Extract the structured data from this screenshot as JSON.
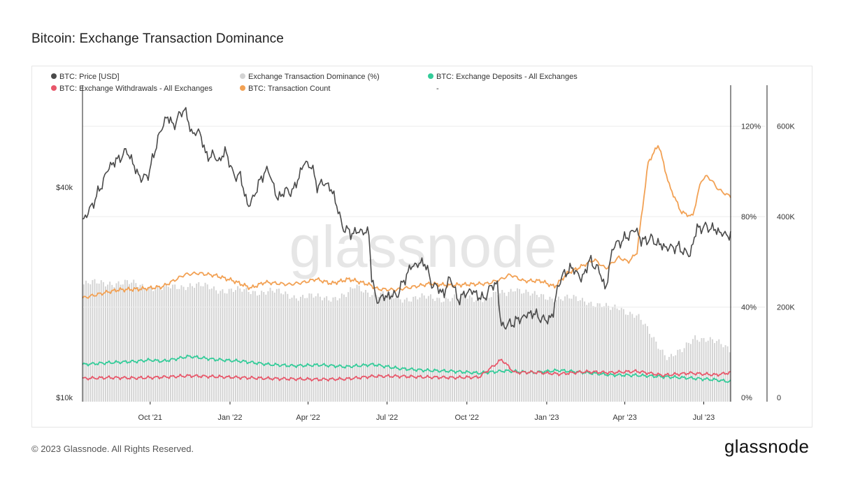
{
  "title": "Bitcoin: Exchange Transaction Dominance",
  "footer": {
    "copyright": "© 2023 Glassnode. All Rights Reserved.",
    "logo": "glassnode"
  },
  "watermark": "glassnode",
  "colors": {
    "price": "#4a4a4a",
    "dominance": "#d3d3d3",
    "deposits": "#33cc99",
    "withdrawals": "#e8576a",
    "txcount": "#f2a154"
  },
  "chart_data": {
    "type": "line",
    "title": "Bitcoin: Exchange Transaction Dominance",
    "x_range": [
      "2021-07-15",
      "2023-08-01"
    ],
    "x_ticks": [
      {
        "date": "2021-10-01",
        "label": "Oct '21"
      },
      {
        "date": "2022-01-01",
        "label": "Jan '22"
      },
      {
        "date": "2022-04-01",
        "label": "Apr '22"
      },
      {
        "date": "2022-07-01",
        "label": "Jul '22"
      },
      {
        "date": "2022-10-01",
        "label": "Oct '22"
      },
      {
        "date": "2023-01-01",
        "label": "Jan '23"
      },
      {
        "date": "2023-04-01",
        "label": "Apr '23"
      },
      {
        "date": "2023-07-01",
        "label": "Jul '23"
      }
    ],
    "left_axis": {
      "scale": "log",
      "ticks": [
        {
          "value": 10000,
          "label": "$10k"
        },
        {
          "value": 40000,
          "label": "$40k"
        }
      ]
    },
    "pct_axis": {
      "range": [
        0,
        140
      ],
      "ticks": [
        {
          "value": 0,
          "label": "0%"
        },
        {
          "value": 40,
          "label": "40%"
        },
        {
          "value": 80,
          "label": "80%"
        },
        {
          "value": 120,
          "label": "120%"
        }
      ]
    },
    "count_axis": {
      "range": [
        0,
        700000
      ],
      "ticks": [
        {
          "value": 0,
          "label": "0"
        },
        {
          "value": 200000,
          "label": "200K"
        },
        {
          "value": 400000,
          "label": "400K"
        },
        {
          "value": 600000,
          "label": "600K"
        }
      ]
    },
    "legend": [
      {
        "name": "BTC: Price [USD]",
        "color": "#4a4a4a"
      },
      {
        "name": "Exchange Transaction Dominance (%)",
        "color": "#d3d3d3"
      },
      {
        "name": "BTC: Exchange Deposits - All Exchanges",
        "color": "#33cc99"
      },
      {
        "name": "BTC: Exchange Withdrawals - All Exchanges",
        "color": "#e8576a"
      },
      {
        "name": "BTC: Transaction Count",
        "color": "#f2a154"
      },
      {
        "name": "-",
        "color": ""
      }
    ],
    "series": [
      {
        "name": "BTC: Price [USD]",
        "axis": "left",
        "color": "#4a4a4a",
        "points": [
          [
            "2021-07-15",
            32000
          ],
          [
            "2021-07-25",
            35000
          ],
          [
            "2021-08-05",
            40000
          ],
          [
            "2021-08-15",
            46000
          ],
          [
            "2021-08-25",
            48000
          ],
          [
            "2021-09-05",
            51000
          ],
          [
            "2021-09-12",
            46000
          ],
          [
            "2021-09-21",
            42000
          ],
          [
            "2021-09-30",
            44000
          ],
          [
            "2021-10-10",
            55000
          ],
          [
            "2021-10-20",
            64000
          ],
          [
            "2021-10-28",
            60000
          ],
          [
            "2021-11-09",
            67500
          ],
          [
            "2021-11-18",
            57000
          ],
          [
            "2021-11-28",
            57500
          ],
          [
            "2021-12-04",
            49000
          ],
          [
            "2021-12-12",
            49500
          ],
          [
            "2021-12-20",
            47500
          ],
          [
            "2021-12-27",
            51000
          ],
          [
            "2022-01-05",
            43000
          ],
          [
            "2022-01-12",
            43500
          ],
          [
            "2022-01-22",
            35000
          ],
          [
            "2022-01-28",
            37500
          ],
          [
            "2022-02-10",
            44500
          ],
          [
            "2022-02-16",
            44000
          ],
          [
            "2022-02-24",
            37000
          ],
          [
            "2022-03-05",
            39000
          ],
          [
            "2022-03-15",
            39000
          ],
          [
            "2022-03-28",
            47200
          ],
          [
            "2022-04-05",
            45800
          ],
          [
            "2022-04-12",
            40000
          ],
          [
            "2022-04-20",
            41500
          ],
          [
            "2022-04-30",
            38500
          ],
          [
            "2022-05-10",
            31000
          ],
          [
            "2022-05-20",
            29500
          ],
          [
            "2022-06-01",
            30000
          ],
          [
            "2022-06-10",
            29500
          ],
          [
            "2022-06-13",
            22500
          ],
          [
            "2022-06-18",
            19000
          ],
          [
            "2022-06-30",
            19500
          ],
          [
            "2022-07-13",
            19700
          ],
          [
            "2022-07-29",
            23800
          ],
          [
            "2022-08-14",
            24400
          ],
          [
            "2022-08-20",
            21400
          ],
          [
            "2022-09-05",
            19800
          ],
          [
            "2022-09-12",
            22300
          ],
          [
            "2022-09-20",
            19000
          ],
          [
            "2022-10-05",
            20300
          ],
          [
            "2022-10-20",
            19100
          ],
          [
            "2022-10-29",
            20800
          ],
          [
            "2022-11-05",
            21300
          ],
          [
            "2022-11-09",
            16000
          ],
          [
            "2022-11-20",
            16200
          ],
          [
            "2022-12-05",
            17000
          ],
          [
            "2022-12-15",
            17500
          ],
          [
            "2022-12-30",
            16600
          ],
          [
            "2023-01-08",
            17100
          ],
          [
            "2023-01-14",
            21000
          ],
          [
            "2023-01-22",
            22800
          ],
          [
            "2023-02-01",
            23500
          ],
          [
            "2023-02-10",
            21700
          ],
          [
            "2023-02-20",
            24800
          ],
          [
            "2023-03-05",
            22500
          ],
          [
            "2023-03-10",
            20000
          ],
          [
            "2023-03-18",
            27000
          ],
          [
            "2023-04-01",
            28500
          ],
          [
            "2023-04-14",
            30400
          ],
          [
            "2023-04-20",
            28000
          ],
          [
            "2023-05-01",
            28500
          ],
          [
            "2023-05-10",
            27500
          ],
          [
            "2023-05-20",
            26800
          ],
          [
            "2023-06-01",
            27000
          ],
          [
            "2023-06-15",
            25500
          ],
          [
            "2023-06-23",
            30500
          ],
          [
            "2023-07-05",
            30800
          ],
          [
            "2023-07-15",
            30200
          ],
          [
            "2023-07-25",
            29200
          ],
          [
            "2023-07-31",
            29300
          ]
        ]
      },
      {
        "name": "BTC: Transaction Count",
        "axis": "count",
        "color": "#f2a154",
        "points": [
          [
            "2021-07-15",
            220000
          ],
          [
            "2021-08-10",
            232000
          ],
          [
            "2021-08-25",
            238000
          ],
          [
            "2021-09-20",
            240000
          ],
          [
            "2021-10-15",
            245000
          ],
          [
            "2021-11-10",
            272000
          ],
          [
            "2021-11-25",
            275000
          ],
          [
            "2021-12-15",
            270000
          ],
          [
            "2022-01-05",
            258000
          ],
          [
            "2022-01-25",
            242000
          ],
          [
            "2022-02-10",
            255000
          ],
          [
            "2022-03-10",
            250000
          ],
          [
            "2022-03-28",
            255000
          ],
          [
            "2022-04-10",
            262000
          ],
          [
            "2022-04-28",
            252000
          ],
          [
            "2022-05-18",
            262000
          ],
          [
            "2022-06-10",
            250000
          ],
          [
            "2022-06-20",
            240000
          ],
          [
            "2022-07-10",
            238000
          ],
          [
            "2022-08-01",
            245000
          ],
          [
            "2022-08-20",
            252000
          ],
          [
            "2022-09-10",
            248000
          ],
          [
            "2022-10-01",
            250000
          ],
          [
            "2022-10-25",
            252000
          ],
          [
            "2022-11-10",
            262000
          ],
          [
            "2022-11-20",
            272000
          ],
          [
            "2022-12-05",
            258000
          ],
          [
            "2022-12-25",
            258000
          ],
          [
            "2023-01-10",
            245000
          ],
          [
            "2023-01-25",
            275000
          ],
          [
            "2023-02-10",
            290000
          ],
          [
            "2023-02-25",
            305000
          ],
          [
            "2023-03-10",
            285000
          ],
          [
            "2023-03-25",
            310000
          ],
          [
            "2023-04-05",
            300000
          ],
          [
            "2023-04-15",
            320000
          ],
          [
            "2023-04-28",
            520000
          ],
          [
            "2023-05-10",
            560000
          ],
          [
            "2023-05-22",
            470000
          ],
          [
            "2023-06-05",
            410000
          ],
          [
            "2023-06-18",
            400000
          ],
          [
            "2023-06-28",
            480000
          ],
          [
            "2023-07-05",
            490000
          ],
          [
            "2023-07-10",
            480000
          ],
          [
            "2023-07-18",
            460000
          ],
          [
            "2023-07-31",
            445000
          ]
        ]
      },
      {
        "name": "Exchange Transaction Dominance (%)",
        "axis": "pct",
        "color": "#d3d3d3",
        "points": [
          [
            "2021-07-15",
            50
          ],
          [
            "2021-08-15",
            51
          ],
          [
            "2021-09-15",
            50
          ],
          [
            "2021-10-15",
            48
          ],
          [
            "2021-11-15",
            50
          ],
          [
            "2021-12-15",
            48
          ],
          [
            "2022-01-15",
            47
          ],
          [
            "2022-02-15",
            47
          ],
          [
            "2022-03-15",
            45
          ],
          [
            "2022-04-15",
            44
          ],
          [
            "2022-05-15",
            45
          ],
          [
            "2022-05-25",
            49
          ],
          [
            "2022-06-15",
            46
          ],
          [
            "2022-07-15",
            44
          ],
          [
            "2022-08-15",
            44
          ],
          [
            "2022-09-15",
            44
          ],
          [
            "2022-10-15",
            44
          ],
          [
            "2022-11-15",
            46
          ],
          [
            "2022-11-25",
            49
          ],
          [
            "2022-12-15",
            45
          ],
          [
            "2023-01-15",
            44
          ],
          [
            "2023-02-15",
            43
          ],
          [
            "2023-03-15",
            39
          ],
          [
            "2023-03-25",
            40
          ],
          [
            "2023-04-15",
            36
          ],
          [
            "2023-05-01",
            27
          ],
          [
            "2023-05-20",
            18
          ],
          [
            "2023-06-05",
            20
          ],
          [
            "2023-06-20",
            27
          ],
          [
            "2023-07-05",
            26
          ],
          [
            "2023-07-31",
            21
          ]
        ]
      },
      {
        "name": "BTC: Exchange Deposits - All Exchanges",
        "axis": "count",
        "color": "#33cc99",
        "points": [
          [
            "2021-07-15",
            73000
          ],
          [
            "2021-08-15",
            77000
          ],
          [
            "2021-09-15",
            80000
          ],
          [
            "2021-10-01",
            83000
          ],
          [
            "2021-10-15",
            80000
          ],
          [
            "2021-11-15",
            91000
          ],
          [
            "2021-12-15",
            84000
          ],
          [
            "2022-01-15",
            80000
          ],
          [
            "2022-02-15",
            73000
          ],
          [
            "2022-03-15",
            70000
          ],
          [
            "2022-04-15",
            72000
          ],
          [
            "2022-05-15",
            68000
          ],
          [
            "2022-06-15",
            73000
          ],
          [
            "2022-07-15",
            64000
          ],
          [
            "2022-08-15",
            60000
          ],
          [
            "2022-09-15",
            58000
          ],
          [
            "2022-10-15",
            54000
          ],
          [
            "2022-11-15",
            59000
          ],
          [
            "2022-12-15",
            55000
          ],
          [
            "2023-01-15",
            60000
          ],
          [
            "2023-02-15",
            55000
          ],
          [
            "2023-03-15",
            50000
          ],
          [
            "2023-04-15",
            49000
          ],
          [
            "2023-05-15",
            46000
          ],
          [
            "2023-06-15",
            43000
          ],
          [
            "2023-07-15",
            39000
          ],
          [
            "2023-07-31",
            35000
          ]
        ]
      },
      {
        "name": "BTC: Exchange Withdrawals - All Exchanges",
        "axis": "count",
        "color": "#e8576a",
        "points": [
          [
            "2021-07-15",
            42000
          ],
          [
            "2021-08-15",
            44000
          ],
          [
            "2021-09-15",
            43000
          ],
          [
            "2021-10-15",
            45000
          ],
          [
            "2021-11-15",
            48000
          ],
          [
            "2021-12-15",
            46000
          ],
          [
            "2022-01-15",
            44000
          ],
          [
            "2022-02-15",
            42000
          ],
          [
            "2022-03-15",
            41000
          ],
          [
            "2022-04-15",
            40000
          ],
          [
            "2022-05-15",
            41000
          ],
          [
            "2022-06-15",
            47000
          ],
          [
            "2022-07-15",
            47000
          ],
          [
            "2022-08-15",
            45000
          ],
          [
            "2022-09-15",
            44000
          ],
          [
            "2022-10-15",
            45000
          ],
          [
            "2022-11-10",
            84000
          ],
          [
            "2022-11-25",
            55000
          ],
          [
            "2022-12-15",
            56000
          ],
          [
            "2023-01-15",
            52000
          ],
          [
            "2023-02-15",
            57000
          ],
          [
            "2023-03-15",
            55000
          ],
          [
            "2023-04-15",
            58000
          ],
          [
            "2023-05-15",
            49000
          ],
          [
            "2023-06-15",
            54000
          ],
          [
            "2023-07-15",
            50000
          ],
          [
            "2023-07-31",
            55000
          ]
        ]
      }
    ]
  }
}
